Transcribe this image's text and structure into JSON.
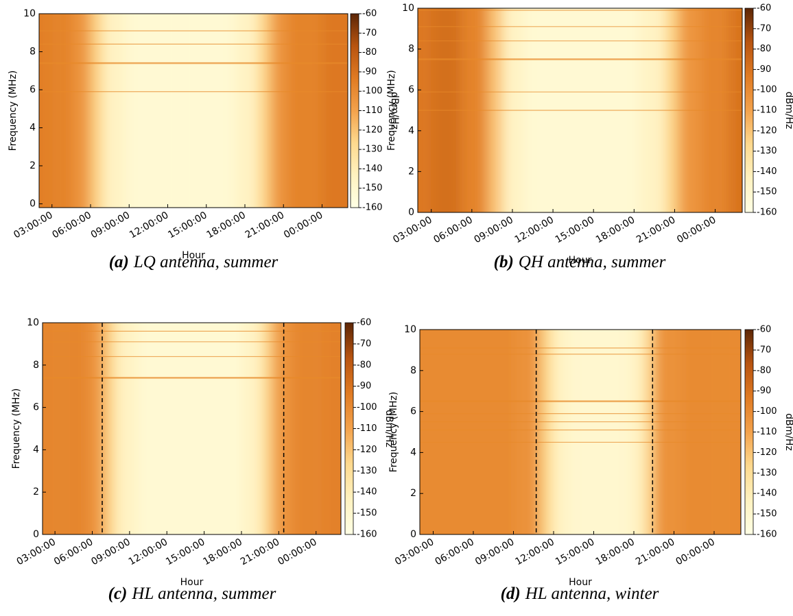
{
  "chart_data": [
    {
      "type": "heatmap",
      "caption_label": "(a)",
      "caption": "LQ antenna, summer",
      "xlabel": "Hour",
      "ylabel": "Frequency (MHz)",
      "colorbar_label": "dBm/Hz",
      "x": [
        2,
        4,
        5.5,
        6.5,
        7.5,
        10,
        16,
        18.5,
        19.5,
        20.5,
        22,
        26
      ],
      "values": [
        -95,
        -97,
        -105,
        -125,
        -145,
        -152,
        -152,
        -145,
        -125,
        -105,
        -97,
        -92
      ],
      "interference_mhz": [
        7.4,
        8.4,
        9.1,
        5.9
      ],
      "xlim": [
        2,
        26
      ],
      "xticks": [
        {
          "value": 3,
          "label": "03:00:00"
        },
        {
          "value": 6,
          "label": "06:00:00"
        },
        {
          "value": 9,
          "label": "09:00:00"
        },
        {
          "value": 12,
          "label": "12:00:00"
        },
        {
          "value": 15,
          "label": "15:00:00"
        },
        {
          "value": 18,
          "label": "18:00:00"
        },
        {
          "value": 21,
          "label": "21:00:00"
        },
        {
          "value": 24,
          "label": "00:00:00"
        }
      ],
      "ylim": [
        -0.2,
        10
      ],
      "yticks": [
        0,
        2,
        4,
        6,
        8,
        10
      ],
      "clim": [
        -160,
        -60
      ],
      "cticks": [
        -60,
        -70,
        -80,
        -90,
        -100,
        -110,
        -120,
        -130,
        -140,
        -150,
        -160
      ],
      "colormap": [
        "#ffffe5",
        "#fff2c0",
        "#fed98e",
        "#f3a24c",
        "#e07b23",
        "#b85410",
        "#5c2606"
      ]
    },
    {
      "type": "heatmap",
      "caption_label": "(b)",
      "caption": "QH antenna, summer",
      "xlabel": "Hour",
      "ylabel": "Frequency (MHz)",
      "colorbar_label": "dBm/Hz",
      "x": [
        2,
        4,
        6.5,
        7.8,
        8.8,
        11,
        17,
        19.8,
        20.8,
        21.8,
        24,
        26
      ],
      "values": [
        -92,
        -88,
        -97,
        -120,
        -145,
        -152,
        -152,
        -145,
        -125,
        -105,
        -98,
        -90
      ],
      "interference_mhz": [
        7.5,
        8.4,
        9.1,
        9.9,
        5.0,
        5.9
      ],
      "xlim": [
        2,
        26
      ],
      "xticks": [
        {
          "value": 3,
          "label": "03:00:00"
        },
        {
          "value": 6,
          "label": "06:00:00"
        },
        {
          "value": 9,
          "label": "09:00:00"
        },
        {
          "value": 12,
          "label": "12:00:00"
        },
        {
          "value": 15,
          "label": "15:00:00"
        },
        {
          "value": 18,
          "label": "18:00:00"
        },
        {
          "value": 21,
          "label": "21:00:00"
        },
        {
          "value": 24,
          "label": "00:00:00"
        }
      ],
      "ylim": [
        0,
        10
      ],
      "yticks": [
        0,
        2,
        4,
        6,
        8,
        10
      ],
      "clim": [
        -160,
        -60
      ],
      "cticks": [
        -60,
        -70,
        -80,
        -90,
        -100,
        -110,
        -120,
        -130,
        -140,
        -150,
        -160
      ],
      "colormap": [
        "#ffffe5",
        "#fff2c0",
        "#fed98e",
        "#f3a24c",
        "#e07b23",
        "#b85410",
        "#5c2606"
      ]
    },
    {
      "type": "heatmap",
      "caption_label": "(c)",
      "caption": "HL antenna, summer",
      "xlabel": "Hour",
      "ylabel": "Frequency (MHz)",
      "colorbar_label": "dBm/Hz",
      "x": [
        2,
        5,
        6.5,
        7.4,
        8.4,
        11,
        17,
        19.2,
        20.1,
        21,
        23,
        26
      ],
      "values": [
        -98,
        -98,
        -105,
        -125,
        -145,
        -152,
        -152,
        -145,
        -125,
        -105,
        -98,
        -96
      ],
      "interference_mhz": [
        7.4,
        8.4,
        9.1,
        9.6
      ],
      "vlines": [
        6.8,
        21.4
      ],
      "xlim": [
        2,
        26
      ],
      "xticks": [
        {
          "value": 3,
          "label": "03:00:00"
        },
        {
          "value": 6,
          "label": "06:00:00"
        },
        {
          "value": 9,
          "label": "09:00:00"
        },
        {
          "value": 12,
          "label": "12:00:00"
        },
        {
          "value": 15,
          "label": "15:00:00"
        },
        {
          "value": 18,
          "label": "18:00:00"
        },
        {
          "value": 21,
          "label": "21:00:00"
        },
        {
          "value": 24,
          "label": "00:00:00"
        }
      ],
      "ylim": [
        0,
        10
      ],
      "yticks": [
        0,
        2,
        4,
        6,
        8,
        10
      ],
      "clim": [
        -160,
        -60
      ],
      "cticks": [
        -60,
        -70,
        -80,
        -90,
        -100,
        -110,
        -120,
        -130,
        -140,
        -150,
        -160
      ],
      "colormap": [
        "#ffffe5",
        "#fff2c0",
        "#fed98e",
        "#f3a24c",
        "#e07b23",
        "#b85410",
        "#5c2606"
      ]
    },
    {
      "type": "heatmap",
      "caption_label": "(d)",
      "caption": "HL antenna, winter",
      "xlabel": "Hour",
      "ylabel": "Frequency (MHz)",
      "colorbar_label": "dBm/Hz",
      "x": [
        2,
        8,
        10.5,
        11.4,
        12.4,
        14,
        17,
        18.4,
        19.1,
        20,
        23,
        26
      ],
      "values": [
        -100,
        -100,
        -103,
        -125,
        -145,
        -150,
        -150,
        -145,
        -125,
        -103,
        -100,
        -100
      ],
      "interference_mhz": [
        6.5,
        4.5,
        5.1,
        5.5,
        5.9,
        8.8,
        9.1
      ],
      "vlines": [
        10.7,
        19.4
      ],
      "xlim": [
        2,
        26
      ],
      "xticks": [
        {
          "value": 3,
          "label": "03:00:00"
        },
        {
          "value": 6,
          "label": "06:00:00"
        },
        {
          "value": 9,
          "label": "09:00:00"
        },
        {
          "value": 12,
          "label": "12:00:00"
        },
        {
          "value": 15,
          "label": "15:00:00"
        },
        {
          "value": 18,
          "label": "18:00:00"
        },
        {
          "value": 21,
          "label": "21:00:00"
        },
        {
          "value": 24,
          "label": "00:00:00"
        }
      ],
      "ylim": [
        0,
        10
      ],
      "yticks": [
        0,
        2,
        4,
        6,
        8,
        10
      ],
      "clim": [
        -160,
        -60
      ],
      "cticks": [
        -60,
        -70,
        -80,
        -90,
        -100,
        -110,
        -120,
        -130,
        -140,
        -150,
        -160
      ],
      "colormap": [
        "#ffffe5",
        "#fff2c0",
        "#fed98e",
        "#f3a24c",
        "#e07b23",
        "#b85410",
        "#5c2606"
      ]
    }
  ]
}
